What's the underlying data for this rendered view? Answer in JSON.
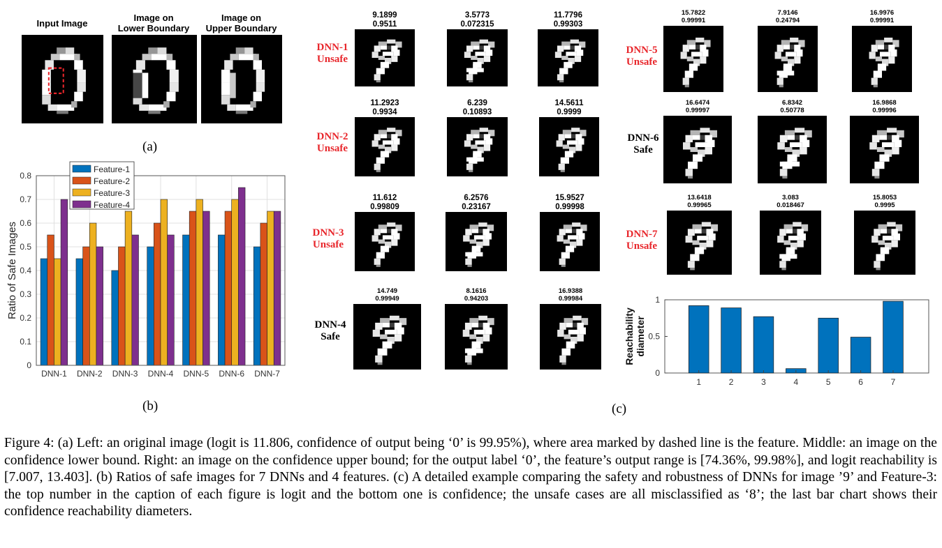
{
  "panel_a": {
    "headers": [
      "Input Image",
      "Image on\nLower Boundary",
      "Image on\nUpper Boundary"
    ],
    "label": "(a)"
  },
  "panel_b_label": "(b)",
  "panel_c_label": "(c)",
  "dnn_rows": [
    {
      "name": "DNN-1",
      "status": "Unsafe",
      "unsafe": true,
      "pairs": [
        [
          "9.1899",
          "0.9511"
        ],
        [
          "3.5773",
          "0.072315"
        ],
        [
          "11.7796",
          "0.99303"
        ]
      ]
    },
    {
      "name": "DNN-2",
      "status": "Unsafe",
      "unsafe": true,
      "pairs": [
        [
          "11.2923",
          "0.9934"
        ],
        [
          "6.239",
          "0.10893"
        ],
        [
          "14.5611",
          "0.9999"
        ]
      ]
    },
    {
      "name": "DNN-3",
      "status": "Unsafe",
      "unsafe": true,
      "pairs": [
        [
          "11.612",
          "0.99809"
        ],
        [
          "6.2576",
          "0.23167"
        ],
        [
          "15.9527",
          "0.99998"
        ]
      ]
    },
    {
      "name": "DNN-4",
      "status": "Safe",
      "unsafe": false,
      "pairs": [
        [
          "14.749",
          "0.99949"
        ],
        [
          "8.1616",
          "0.94203"
        ],
        [
          "16.9388",
          "0.99984"
        ]
      ]
    },
    {
      "name": "DNN-5",
      "status": "Unsafe",
      "unsafe": true,
      "pairs": [
        [
          "15.7822",
          "0.99991"
        ],
        [
          "7.9146",
          "0.24794"
        ],
        [
          "16.9976",
          "0.99991"
        ]
      ]
    },
    {
      "name": "DNN-6",
      "status": "Safe",
      "unsafe": false,
      "pairs": [
        [
          "16.6474",
          "0.99997"
        ],
        [
          "6.8342",
          "0.50778"
        ],
        [
          "16.9868",
          "0.99996"
        ]
      ]
    },
    {
      "name": "DNN-7",
      "status": "Unsafe",
      "unsafe": true,
      "pairs": [
        [
          "13.6418",
          "0.99965"
        ],
        [
          "3.083",
          "0.018467"
        ],
        [
          "15.8053",
          "0.9995"
        ]
      ]
    }
  ],
  "chart_data": [
    {
      "type": "bar",
      "ylabel": "Ratio of Safe Images",
      "ylim": [
        0,
        0.8
      ],
      "yticks": [
        "0",
        "0.1",
        "0.2",
        "0.3",
        "0.4",
        "0.5",
        "0.6",
        "0.7",
        "0.8"
      ],
      "grid": true,
      "legend_position": "top-left",
      "categories": [
        "DNN-1",
        "DNN-2",
        "DNN-3",
        "DNN-4",
        "DNN-5",
        "DNN-6",
        "DNN-7"
      ],
      "series": [
        {
          "name": "Feature-1",
          "color": "#0072bd",
          "values": [
            0.45,
            0.45,
            0.4,
            0.5,
            0.55,
            0.55,
            0.5
          ]
        },
        {
          "name": "Feature-2",
          "color": "#d95319",
          "values": [
            0.55,
            0.5,
            0.5,
            0.6,
            0.65,
            0.65,
            0.6
          ]
        },
        {
          "name": "Feature-3",
          "color": "#edb120",
          "values": [
            0.45,
            0.6,
            0.65,
            0.7,
            0.7,
            0.7,
            0.65
          ]
        },
        {
          "name": "Feature-4",
          "color": "#7e2f8e",
          "values": [
            0.7,
            0.5,
            0.55,
            0.55,
            0.65,
            0.75,
            0.65
          ]
        }
      ]
    },
    {
      "type": "bar",
      "ylabel": "Reachability\ndiameter",
      "ylim": [
        0,
        1
      ],
      "yticks": [
        "0",
        "0.5",
        "1"
      ],
      "categories": [
        "1",
        "2",
        "3",
        "4",
        "5",
        "6",
        "7"
      ],
      "color": "#0072bd",
      "values": [
        0.92,
        0.89,
        0.77,
        0.06,
        0.75,
        0.49,
        0.98
      ]
    }
  ],
  "caption": {
    "p1": "Figure 4: (a) Left: an original image (logit is 11.806, confidence of output being ‘0’ is 99.95%), where area marked by dashed line is the feature. Middle: an image on the confidence lower bound. Right: an image on the confidence upper bound; for the output label ‘0’, the feature’s output range is ",
    "range": "[74.36%, 99.98%]",
    "p2": ", and logit reachability is ",
    "logit_range": "[7.007, 13.403]",
    "p3": ". (b) Ratios of safe images for 7 DNNs and 4 features. (c) A detailed example comparing the safety and robustness of DNNs for image ’9’ and Feature-3: the top number in the caption of each figure is logit and the bottom one is confidence; the unsafe cases are all misclassified as ‘8’; the last bar chart shows their confidence reachability diameters."
  },
  "colors": {
    "unsafe": "#e8262b",
    "safe": "#000000"
  }
}
